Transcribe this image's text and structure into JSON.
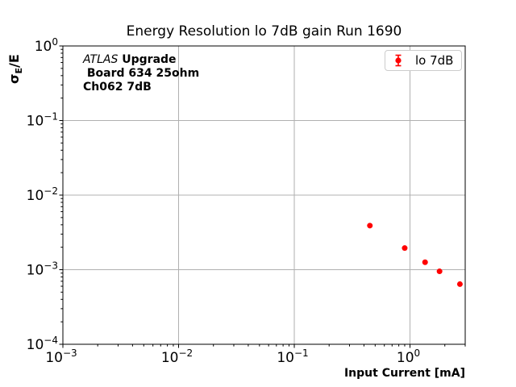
{
  "chart_data": {
    "type": "scatter",
    "title": "Energy Resolution lo 7dB gain Run 1690",
    "xlabel": "Input Current [mA]",
    "ylabel": "σE/E",
    "ylabel_parts": {
      "sigma": "σ",
      "sub": "E",
      "rest": "/E"
    },
    "x_scale": "log",
    "y_scale": "log",
    "xlim": [
      0.001,
      3.0
    ],
    "ylim": [
      0.0001,
      1.0
    ],
    "x_ticks": [
      0.001,
      0.01,
      0.1,
      1.0
    ],
    "y_ticks": [
      0.0001,
      0.001,
      0.01,
      0.1,
      1.0
    ],
    "grid": {
      "which": "major",
      "color": "#b0b0b0"
    },
    "series": [
      {
        "name": "lo 7dB",
        "color": "#ff0000",
        "marker": "circle-errorbar",
        "x": [
          0.45,
          0.9,
          1.35,
          1.8,
          2.7
        ],
        "y": [
          0.0039,
          0.00195,
          0.00126,
          0.00095,
          0.00064
        ]
      }
    ],
    "legend": {
      "label": "lo 7dB",
      "position": "upper-right"
    },
    "annotation": {
      "line1_italic": "ATLAS",
      "line1_bold": " Upgrade",
      "line2": " Board 634 25ohm",
      "line3": "Ch062 7dB"
    }
  }
}
